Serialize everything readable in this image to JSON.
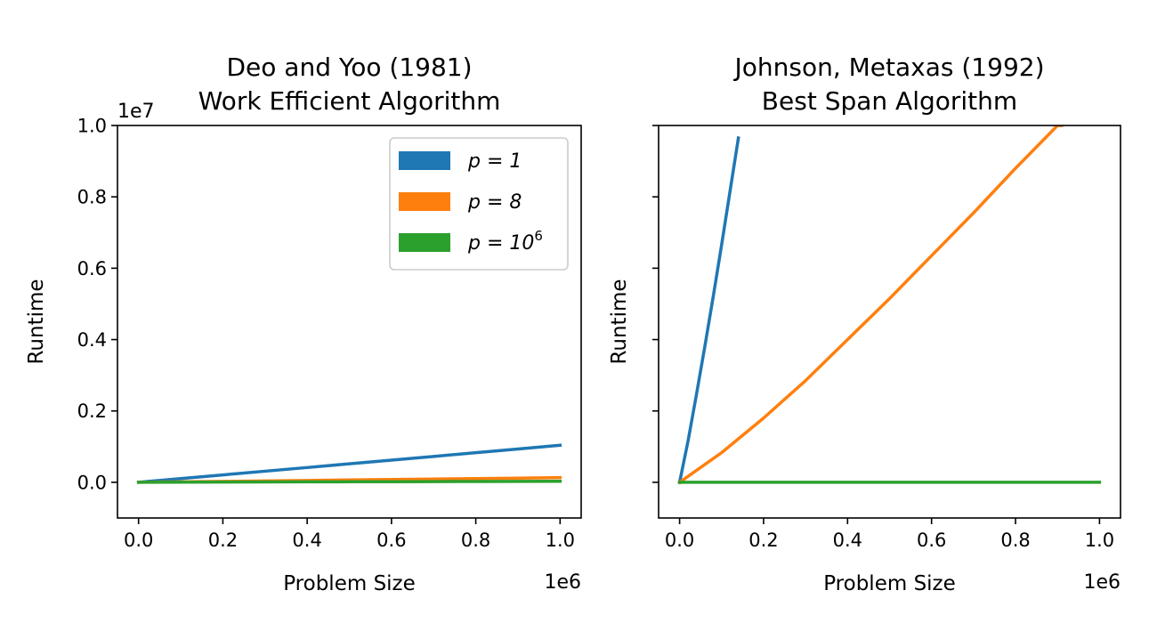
{
  "chart_data": [
    {
      "type": "line",
      "title": [
        "Deo and Yoo (1981)",
        "Work Efficient Algorithm"
      ],
      "xlabel": "Problem Size",
      "ylabel": "Runtime",
      "x_offset_label": "1e6",
      "y_offset_label": "1e7",
      "xlim": [
        -0.05,
        1.05
      ],
      "ylim": [
        -0.1,
        1.0
      ],
      "x_scale": 1000000,
      "y_scale": 10000000,
      "x_ticks": [
        0.0,
        0.2,
        0.4,
        0.6,
        0.8,
        1.0
      ],
      "x_tick_labels": [
        "0.0",
        "0.2",
        "0.4",
        "0.6",
        "0.8",
        "1.0"
      ],
      "y_ticks": [
        0.0,
        0.2,
        0.4,
        0.6,
        0.8,
        1.0
      ],
      "y_tick_labels": [
        "0.0",
        "0.2",
        "0.4",
        "0.6",
        "0.8",
        "1.0"
      ],
      "grid": false,
      "legend": {
        "placement": "top-right",
        "entries": [
          {
            "label_main": "p = 1",
            "label_sup": "",
            "color": "#1f77b4"
          },
          {
            "label_main": "p = 8",
            "label_sup": "",
            "color": "#ff7f0e"
          },
          {
            "label_main": "p = 10",
            "label_sup": "6",
            "color": "#2ca02c"
          }
        ]
      },
      "series": [
        {
          "name": "p = 1",
          "color": "#1f77b4",
          "x": [
            0,
            0.1,
            0.2,
            0.3,
            0.4,
            0.5,
            0.6,
            0.7,
            0.8,
            0.9,
            1.0
          ],
          "y": [
            0,
            0.0103,
            0.0207,
            0.0311,
            0.0414,
            0.0518,
            0.0622,
            0.0725,
            0.0829,
            0.0933,
            0.1037
          ]
        },
        {
          "name": "p = 8",
          "color": "#ff7f0e",
          "x": [
            0,
            0.1,
            0.2,
            0.3,
            0.4,
            0.5,
            0.6,
            0.7,
            0.8,
            0.9,
            1.0
          ],
          "y": [
            0,
            0.0013,
            0.0026,
            0.0039,
            0.0052,
            0.0065,
            0.0078,
            0.0091,
            0.0104,
            0.0117,
            0.013
          ]
        },
        {
          "name": "p = 10^6",
          "color": "#2ca02c",
          "x": [
            0,
            0.1,
            0.2,
            0.3,
            0.4,
            0.5,
            0.6,
            0.7,
            0.8,
            0.9,
            1.0
          ],
          "y": [
            0,
            0.0003,
            0.0006,
            0.0009,
            0.0012,
            0.0015,
            0.0018,
            0.0021,
            0.0024,
            0.0027,
            0.003
          ]
        }
      ]
    },
    {
      "type": "line",
      "title": [
        "Johnson, Metaxas (1992)",
        "Best Span Algorithm"
      ],
      "xlabel": "Problem Size",
      "ylabel": "Runtime",
      "x_offset_label": "1e6",
      "xlim": [
        -0.05,
        1.05
      ],
      "ylim": [
        -0.1,
        1.0
      ],
      "x_scale": 1000000,
      "y_scale": 10000000,
      "x_ticks": [
        0.0,
        0.2,
        0.4,
        0.6,
        0.8,
        1.0
      ],
      "x_tick_labels": [
        "0.0",
        "0.2",
        "0.4",
        "0.6",
        "0.8",
        "1.0"
      ],
      "y_ticks": [
        0.0,
        0.2,
        0.4,
        0.6,
        0.8,
        1.0
      ],
      "y_tick_labels_shown": false,
      "grid": false,
      "series": [
        {
          "name": "p = 1",
          "color": "#1f77b4",
          "x": [
            0,
            0.02,
            0.04,
            0.06,
            0.08,
            0.1,
            0.12,
            0.14
          ],
          "y": [
            0,
            0.115,
            0.245,
            0.38,
            0.52,
            0.665,
            0.815,
            0.965
          ]
        },
        {
          "name": "p = 8",
          "color": "#ff7f0e",
          "x": [
            0,
            0.1,
            0.2,
            0.3,
            0.4,
            0.5,
            0.6,
            0.7,
            0.8,
            0.9,
            0.91
          ],
          "y": [
            0,
            0.083,
            0.18,
            0.285,
            0.4,
            0.515,
            0.635,
            0.755,
            0.88,
            1.0,
            1.0
          ]
        },
        {
          "name": "p = 10^6",
          "color": "#2ca02c",
          "x": [
            0,
            0.25,
            0.5,
            0.75,
            1.0
          ],
          "y": [
            0,
            0,
            0,
            0,
            0
          ]
        }
      ]
    }
  ]
}
